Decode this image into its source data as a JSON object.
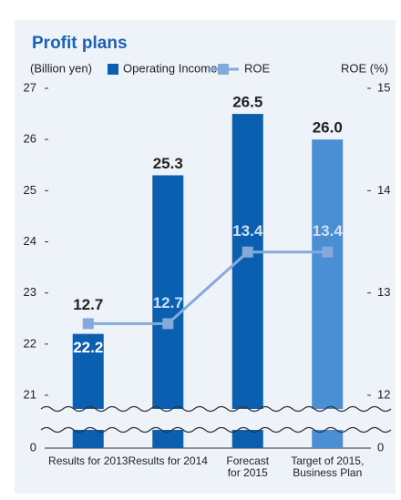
{
  "chart_data": {
    "type": "bar_line",
    "title": "Profit plans",
    "y_label": "(Billion yen)",
    "y2_label": "ROE (%)",
    "categories": [
      [
        "Results for 2013"
      ],
      [
        "Results for 2014"
      ],
      [
        "Forecast",
        "for 2015"
      ],
      [
        "Target of 2015,",
        "Business Plan"
      ]
    ],
    "series": [
      {
        "name": "Operating Income",
        "type": "bar",
        "colors": [
          "#0b5fb0",
          "#0b5fb0",
          "#0b5fb0",
          "#4a8fd4"
        ],
        "values": [
          22.2,
          25.3,
          26.5,
          26.0
        ],
        "value_labels": [
          "22.2",
          "25.3",
          "26.5",
          "26.0"
        ]
      },
      {
        "name": "ROE",
        "type": "line",
        "axis": "y2",
        "color": "#86a9db",
        "values": [
          12.7,
          12.7,
          13.4,
          13.4
        ]
      }
    ],
    "ylim": [
      0,
      27
    ],
    "yticks": [
      0,
      21,
      22,
      23,
      24,
      25,
      26,
      27
    ],
    "y_break": [
      0,
      21
    ],
    "y2lim": [
      0,
      15
    ],
    "y2ticks": [
      0,
      12,
      13,
      14,
      15
    ],
    "y2_break": [
      0,
      12
    ]
  }
}
